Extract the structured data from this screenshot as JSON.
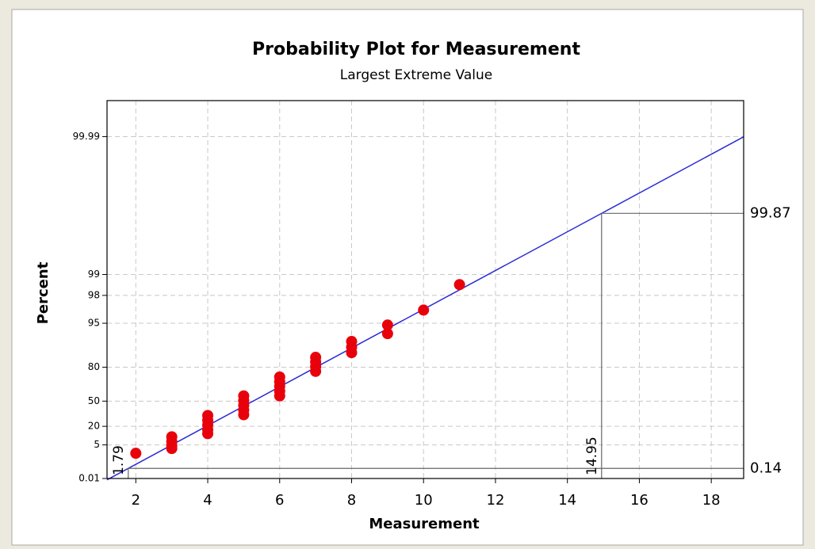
{
  "chart_data": {
    "type": "probability-plot",
    "title": "Probability Plot for Measurement",
    "subtitle": "Largest Extreme Value",
    "x_label": "Measurement",
    "y_label": "Percent",
    "yscale": "largest-extreme-value",
    "grid": true,
    "color": "#e8000b",
    "line_color": "#2b2bd6",
    "x": [
      2,
      3,
      3,
      3,
      3,
      4,
      4,
      4,
      4,
      4,
      5,
      5,
      5,
      5,
      5,
      6,
      6,
      6,
      6,
      6,
      7,
      7,
      7,
      7,
      8,
      8,
      8,
      9,
      9,
      10,
      11
    ],
    "values": [
      1.9,
      10.2,
      6.9,
      4.7,
      3.4,
      32.6,
      26.9,
      21.4,
      16.5,
      12.8,
      55.9,
      50.6,
      45.1,
      39.3,
      33.5,
      73.4,
      69.6,
      65.5,
      60.9,
      55.9,
      85.2,
      82.9,
      80.3,
      77.4,
      91.0,
      89.2,
      87.2,
      94.7,
      93.0,
      96.75,
      98.6
    ],
    "references": [
      {
        "x": 1.79,
        "y": 0.14
      },
      {
        "x": 14.95,
        "y": 99.87
      }
    ],
    "xlim": [
      1.2,
      18.9
    ],
    "xticks": [
      2,
      4,
      6,
      8,
      10,
      12,
      14,
      16,
      18
    ],
    "ylim": [
      0.01,
      99.997
    ],
    "yticks": [
      0.01,
      5,
      20,
      50,
      80,
      95,
      98,
      99,
      99.99
    ]
  }
}
